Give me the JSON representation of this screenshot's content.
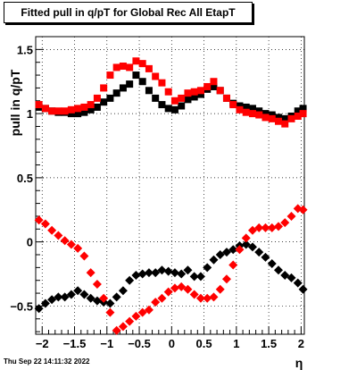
{
  "title": "Fitted pull in q/pT for Global Rec All EtapT",
  "timestamp": "Thu Sep 22 14:11:32 2022",
  "chart_data": {
    "type": "scatter",
    "title": "Fitted pull in q/pT for Global Rec All EtapT",
    "xlabel": "η",
    "ylabel": "pull in q/pT",
    "xlim": [
      -2.1,
      2.05
    ],
    "ylim": [
      -0.72,
      1.6
    ],
    "grid": true,
    "x_ticks": [
      -2,
      -1.5,
      -1,
      -0.5,
      0,
      0.5,
      1,
      1.5,
      2
    ],
    "x_tick_labels": [
      "−2",
      "−1.5",
      "−1",
      "−0.5",
      "0",
      "0.5",
      "1",
      "1.5",
      "2"
    ],
    "y_ticks": [
      -0.5,
      0,
      0.5,
      1,
      1.5
    ],
    "y_tick_labels": [
      "−0.5",
      "0",
      "0.5",
      "1",
      "1.5"
    ],
    "series": [
      {
        "color": "#000000",
        "marker": "square",
        "x": [
          -2.05,
          -1.95,
          -1.85,
          -1.75,
          -1.65,
          -1.55,
          -1.45,
          -1.35,
          -1.25,
          -1.15,
          -1.05,
          -0.95,
          -0.85,
          -0.75,
          -0.65,
          -0.55,
          -0.45,
          -0.35,
          -0.25,
          -0.15,
          -0.05,
          0.05,
          0.15,
          0.25,
          0.35,
          0.45,
          0.55,
          0.65,
          0.75,
          0.85,
          0.95,
          1.05,
          1.15,
          1.25,
          1.35,
          1.45,
          1.55,
          1.65,
          1.75,
          1.85,
          1.95,
          2.03
        ],
        "y": [
          1.05,
          1.04,
          1.02,
          1.01,
          1.01,
          1.0,
          1.0,
          1.01,
          1.03,
          1.05,
          1.09,
          1.12,
          1.16,
          1.2,
          1.23,
          1.3,
          1.25,
          1.18,
          1.12,
          1.07,
          1.04,
          1.03,
          1.06,
          1.11,
          1.13,
          1.15,
          1.19,
          1.21,
          1.18,
          1.12,
          1.08,
          1.06,
          1.05,
          1.04,
          1.02,
          1.0,
          0.99,
          0.97,
          0.96,
          0.98,
          1.02,
          1.04
        ]
      },
      {
        "color": "#ff0000",
        "marker": "square",
        "x": [
          -2.05,
          -1.95,
          -1.85,
          -1.75,
          -1.65,
          -1.55,
          -1.45,
          -1.35,
          -1.25,
          -1.15,
          -1.05,
          -0.95,
          -0.85,
          -0.75,
          -0.65,
          -0.55,
          -0.45,
          -0.35,
          -0.25,
          -0.15,
          -0.05,
          0.05,
          0.15,
          0.25,
          0.35,
          0.45,
          0.55,
          0.65,
          0.75,
          0.85,
          0.95,
          1.05,
          1.15,
          1.25,
          1.35,
          1.45,
          1.55,
          1.65,
          1.75,
          1.85,
          1.95,
          2.03
        ],
        "y": [
          1.07,
          1.04,
          1.02,
          1.02,
          1.02,
          1.03,
          1.04,
          1.05,
          1.07,
          1.12,
          1.2,
          1.3,
          1.36,
          1.37,
          1.36,
          1.41,
          1.39,
          1.35,
          1.29,
          1.24,
          1.17,
          1.1,
          1.12,
          1.16,
          1.17,
          1.18,
          1.21,
          1.25,
          1.18,
          1.12,
          1.07,
          1.03,
          1.01,
          1.0,
          0.99,
          0.97,
          0.96,
          0.94,
          0.92,
          0.96,
          0.98,
          1.0
        ]
      },
      {
        "color": "#000000",
        "marker": "diamond",
        "x": [
          -2.05,
          -1.95,
          -1.85,
          -1.75,
          -1.65,
          -1.55,
          -1.45,
          -1.35,
          -1.25,
          -1.15,
          -1.05,
          -0.95,
          -0.85,
          -0.75,
          -0.65,
          -0.55,
          -0.45,
          -0.35,
          -0.25,
          -0.15,
          -0.05,
          0.05,
          0.15,
          0.25,
          0.35,
          0.45,
          0.55,
          0.65,
          0.75,
          0.85,
          0.95,
          1.05,
          1.15,
          1.25,
          1.35,
          1.45,
          1.55,
          1.65,
          1.75,
          1.85,
          1.95,
          2.03
        ],
        "y": [
          -0.52,
          -0.48,
          -0.45,
          -0.43,
          -0.43,
          -0.41,
          -0.38,
          -0.41,
          -0.44,
          -0.46,
          -0.47,
          -0.48,
          -0.43,
          -0.38,
          -0.3,
          -0.26,
          -0.25,
          -0.24,
          -0.24,
          -0.22,
          -0.23,
          -0.24,
          -0.25,
          -0.22,
          -0.27,
          -0.27,
          -0.2,
          -0.14,
          -0.1,
          -0.08,
          -0.06,
          -0.03,
          -0.02,
          -0.04,
          -0.08,
          -0.12,
          -0.17,
          -0.22,
          -0.26,
          -0.28,
          -0.32,
          -0.37
        ]
      },
      {
        "color": "#ff0000",
        "marker": "diamond",
        "x": [
          -2.05,
          -1.95,
          -1.85,
          -1.75,
          -1.65,
          -1.55,
          -1.45,
          -1.35,
          -1.25,
          -1.15,
          -1.05,
          -0.95,
          -0.85,
          -0.75,
          -0.65,
          -0.55,
          -0.45,
          -0.35,
          -0.25,
          -0.15,
          -0.05,
          0.05,
          0.15,
          0.25,
          0.35,
          0.45,
          0.55,
          0.65,
          0.75,
          0.85,
          0.95,
          1.05,
          1.15,
          1.25,
          1.35,
          1.45,
          1.55,
          1.65,
          1.75,
          1.85,
          1.95,
          2.03
        ],
        "y": [
          0.17,
          0.14,
          0.09,
          0.05,
          0.01,
          -0.02,
          -0.05,
          -0.11,
          -0.24,
          -0.33,
          -0.44,
          -0.55,
          -0.69,
          -0.66,
          -0.62,
          -0.58,
          -0.55,
          -0.53,
          -0.47,
          -0.44,
          -0.39,
          -0.36,
          -0.35,
          -0.37,
          -0.41,
          -0.44,
          -0.44,
          -0.43,
          -0.37,
          -0.29,
          -0.18,
          -0.06,
          0.03,
          0.09,
          0.11,
          0.11,
          0.11,
          0.12,
          0.15,
          0.2,
          0.26,
          0.25
        ]
      }
    ]
  }
}
